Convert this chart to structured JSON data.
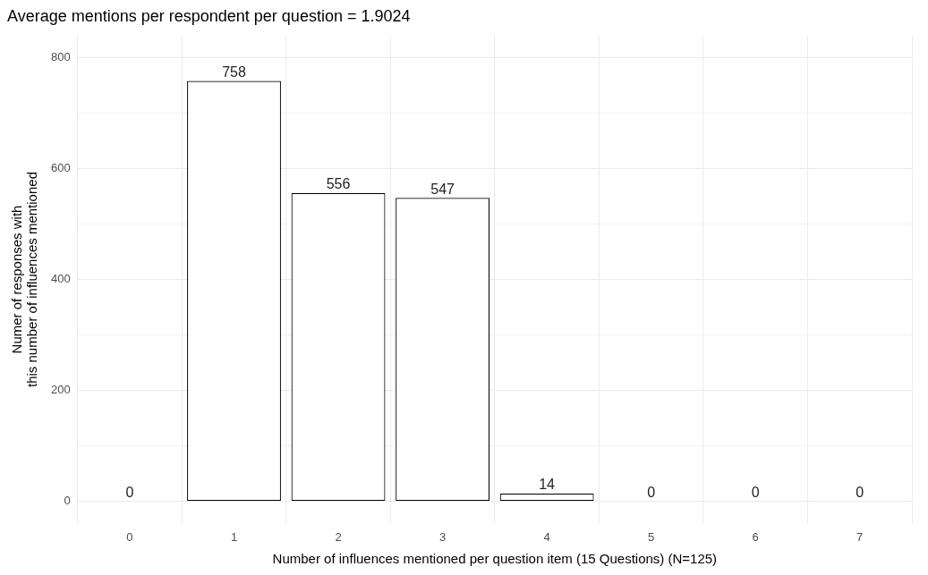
{
  "chart_data": {
    "type": "bar",
    "title": "Average mentions per respondent per question = 1.9024",
    "xlabel": "Number of influences mentioned per question item (15 Questions) (N=125)",
    "ylabel": "Numer of responses with\nthis number of influences mentioned",
    "categories": [
      "0",
      "1",
      "2",
      "3",
      "4",
      "5",
      "6",
      "7"
    ],
    "values": [
      0,
      758,
      556,
      547,
      14,
      0,
      0,
      0
    ],
    "color": "#ffffff",
    "ylim": [
      -40,
      840
    ],
    "yticks": [
      0,
      {
        "value": 100,
        "label": null
      },
      200,
      {
        "value": 300,
        "label": null
      },
      400,
      {
        "value": 500,
        "label": null
      },
      600,
      {
        "value": 700,
        "label": null
      },
      800
    ],
    "grid": true,
    "data_labels": true,
    "legend": false
  }
}
